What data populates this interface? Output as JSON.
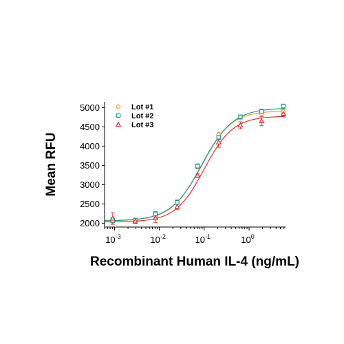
{
  "chart_data": {
    "type": "scatter",
    "title": "",
    "xlabel": "Recombinant Human IL-4 (ng/mL)",
    "ylabel": "Mean RFU",
    "xscale": "log",
    "xlim": [
      0.0006,
      6.5
    ],
    "ylim": [
      1900,
      5150
    ],
    "yticks": [
      2000,
      2500,
      3000,
      3500,
      4000,
      4500,
      5000
    ],
    "xticks": [
      {
        "base": "10",
        "exp": "-3",
        "value": 0.001
      },
      {
        "base": "10",
        "exp": "-2",
        "value": 0.01
      },
      {
        "base": "10",
        "exp": "-1",
        "value": 0.1
      },
      {
        "base": "10",
        "exp": "0",
        "value": 1
      }
    ],
    "grid": false,
    "legend_position": "top-left",
    "series": [
      {
        "name": "Lot #1",
        "color": "#f39c32",
        "marker": "circle",
        "x": [
          0.00091,
          0.0029,
          0.0082,
          0.025,
          0.071,
          0.21,
          0.64,
          1.9,
          5.8
        ],
        "y": [
          2090,
          2060,
          2200,
          2560,
          3470,
          4300,
          4740,
          4830,
          4900
        ],
        "err": [
          60,
          50,
          60,
          50,
          60,
          60,
          50,
          60,
          50
        ],
        "fit": {
          "bottom": 2060,
          "top": 4920,
          "ec50": 0.085,
          "hill": 1.3
        }
      },
      {
        "name": "Lot #2",
        "color": "#1a9e8e",
        "marker": "square",
        "x": [
          0.00091,
          0.0029,
          0.0082,
          0.025,
          0.071,
          0.21,
          0.64,
          1.9,
          5.8
        ],
        "y": [
          2070,
          2080,
          2240,
          2540,
          3480,
          4230,
          4760,
          4900,
          5040
        ],
        "err": [
          60,
          50,
          60,
          50,
          60,
          60,
          50,
          60,
          50
        ],
        "fit": {
          "bottom": 2060,
          "top": 4990,
          "ec50": 0.09,
          "hill": 1.25
        }
      },
      {
        "name": "Lot #3",
        "color": "#e8302c",
        "marker": "triangle",
        "x": [
          0.00091,
          0.0029,
          0.0082,
          0.025,
          0.071,
          0.21,
          0.64,
          1.9,
          5.8
        ],
        "y": [
          2120,
          2050,
          2130,
          2430,
          3240,
          4100,
          4540,
          4650,
          4840
        ],
        "err": [
          150,
          60,
          110,
          70,
          50,
          130,
          90,
          120,
          60
        ],
        "fit": {
          "bottom": 2030,
          "top": 4780,
          "ec50": 0.1,
          "hill": 1.35
        }
      }
    ]
  }
}
